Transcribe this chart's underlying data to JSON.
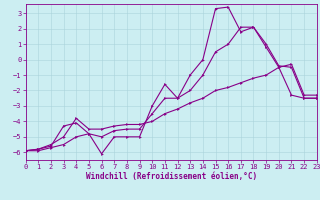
{
  "xlabel": "Windchill (Refroidissement éolien,°C)",
  "background_color": "#cceef2",
  "line_color": "#880088",
  "grid_color": "#aad4dc",
  "xlim": [
    0,
    23
  ],
  "ylim": [
    -6.5,
    3.6
  ],
  "xticks": [
    0,
    1,
    2,
    3,
    4,
    5,
    6,
    7,
    8,
    9,
    10,
    11,
    12,
    13,
    14,
    15,
    16,
    17,
    18,
    19,
    20,
    21,
    22,
    23
  ],
  "yticks": [
    -6,
    -5,
    -4,
    -3,
    -2,
    -1,
    0,
    1,
    2,
    3
  ],
  "line1_x": [
    0,
    1,
    2,
    3,
    4,
    5,
    6,
    7,
    8,
    9,
    10,
    11,
    12,
    13,
    14,
    15,
    16,
    17,
    18,
    19,
    20,
    21,
    22,
    23
  ],
  "line1_y": [
    -5.9,
    -5.9,
    -5.7,
    -5.5,
    -5.0,
    -4.8,
    -6.1,
    -5.0,
    -5.0,
    -5.0,
    -3.0,
    -1.6,
    -2.5,
    -1.0,
    0.0,
    3.3,
    3.4,
    1.8,
    2.1,
    0.8,
    -0.5,
    -2.3,
    -2.5,
    -2.5
  ],
  "line2_x": [
    0,
    1,
    2,
    3,
    4,
    5,
    6,
    7,
    8,
    9,
    10,
    11,
    12,
    13,
    14,
    15,
    16,
    17,
    18,
    19,
    20,
    21,
    22,
    23
  ],
  "line2_y": [
    -5.9,
    -5.8,
    -5.6,
    -4.3,
    -4.1,
    -4.8,
    -5.0,
    -4.6,
    -4.5,
    -4.5,
    -3.5,
    -2.5,
    -2.5,
    -2.0,
    -1.0,
    0.5,
    1.0,
    2.1,
    2.1,
    1.0,
    -0.4,
    -0.5,
    -2.5,
    -2.5
  ],
  "line3_x": [
    0,
    1,
    2,
    3,
    4,
    5,
    6,
    7,
    8,
    9,
    10,
    11,
    12,
    13,
    14,
    15,
    16,
    17,
    18,
    19,
    20,
    21,
    22,
    23
  ],
  "line3_y": [
    -5.9,
    -5.8,
    -5.5,
    -5.0,
    -3.8,
    -4.5,
    -4.5,
    -4.3,
    -4.2,
    -4.2,
    -4.0,
    -3.5,
    -3.2,
    -2.8,
    -2.5,
    -2.0,
    -1.8,
    -1.5,
    -1.2,
    -1.0,
    -0.5,
    -0.3,
    -2.3,
    -2.3
  ],
  "tick_fontsize": 5.0,
  "xlabel_fontsize": 5.5,
  "marker_size": 2.0,
  "line_width": 0.8
}
